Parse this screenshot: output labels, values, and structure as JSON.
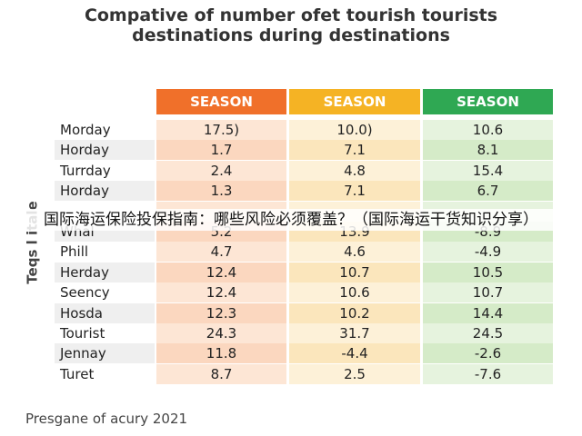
{
  "header": {
    "title": [
      "Compative of number ofet tourish tourists",
      "destinations during destinations"
    ]
  },
  "side_label": "Teqs l itale",
  "table": {
    "columns": [
      "SEASON",
      "SEASON",
      "SEASON"
    ],
    "rows": [
      [
        "Morday",
        "17.5)",
        "10.0)",
        "10.6"
      ],
      [
        "Horday",
        "1.7",
        "7.1",
        "8.1"
      ],
      [
        "Turrday",
        "2.4",
        "4.8",
        "15.4"
      ],
      [
        "Horday",
        "1.3",
        "7.1",
        "6.7"
      ],
      null,
      [
        "Whal",
        "5.2",
        "13.9",
        "-8.9"
      ],
      [
        "Phill",
        "4.7",
        "4.6",
        "-4.9"
      ],
      [
        "Herday",
        "12.4",
        "10.7",
        "10.5"
      ],
      [
        "Seency",
        "12.4",
        "10.6",
        "10.7"
      ],
      [
        "Hosda",
        "12.3",
        "10.2",
        "14.4"
      ],
      [
        "Tourist",
        "24.3",
        "31.7",
        "24.5"
      ],
      [
        "Jennay",
        "11.8",
        "-4.4",
        "-2.6"
      ],
      [
        "Turet",
        "8.7",
        "2.5",
        "-7.6"
      ]
    ]
  },
  "footer": "Presgane of acury 2021",
  "banner": "国际海运保险投保指南：哪些风险必须覆盖？（国际海运干货知识分享）"
}
